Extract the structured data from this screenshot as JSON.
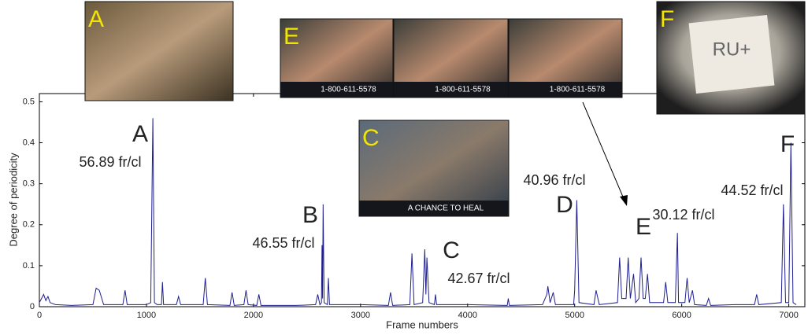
{
  "chart_data": {
    "type": "line",
    "ylabel": "Degree of periodicity",
    "xlabel": "Frame numbers",
    "color": "#1f1f8f",
    "xlim": [
      0,
      7150
    ],
    "ylim": [
      0,
      0.52
    ],
    "xticks": [
      0,
      1000,
      2000,
      3000,
      4000,
      5000,
      6000,
      7000
    ],
    "yticks": [
      0,
      0.1,
      0.2,
      0.3,
      0.4,
      0.5
    ],
    "x": [
      0,
      20,
      40,
      60,
      80,
      100,
      150,
      300,
      500,
      530,
      560,
      600,
      780,
      800,
      820,
      1000,
      1040,
      1060,
      1075,
      1100,
      1140,
      1150,
      1160,
      1280,
      1300,
      1320,
      1530,
      1550,
      1570,
      1780,
      1800,
      1820,
      1910,
      1930,
      1950,
      2030,
      2050,
      2070,
      2400,
      2580,
      2600,
      2620,
      2635,
      2640,
      2645,
      2650,
      2660,
      2690,
      2700,
      2710,
      3000,
      3260,
      3280,
      3300,
      3460,
      3480,
      3500,
      3580,
      3600,
      3610,
      3620,
      3640,
      3690,
      3700,
      3710,
      4000,
      4370,
      4380,
      4390,
      4700,
      4740,
      4750,
      4770,
      4800,
      4820,
      4990,
      5000,
      5020,
      5040,
      5180,
      5200,
      5230,
      5400,
      5420,
      5440,
      5480,
      5500,
      5520,
      5550,
      5570,
      5600,
      5620,
      5640,
      5660,
      5680,
      5700,
      5830,
      5850,
      5870,
      5940,
      5960,
      5970,
      6030,
      6050,
      6070,
      6100,
      6120,
      6230,
      6250,
      6270,
      6500,
      6680,
      6700,
      6720,
      6930,
      6950,
      6970,
      7000,
      7020,
      7040,
      7070
    ],
    "values": [
      0.01,
      0.02,
      0.03,
      0.015,
      0.025,
      0.01,
      0.005,
      0.003,
      0.005,
      0.045,
      0.04,
      0.005,
      0.005,
      0.04,
      0.005,
      0.005,
      0.01,
      0.46,
      0.01,
      0.005,
      0.005,
      0.06,
      0.005,
      0.005,
      0.025,
      0.005,
      0.005,
      0.07,
      0.005,
      0.003,
      0.035,
      0.003,
      0.005,
      0.04,
      0.005,
      0.003,
      0.03,
      0.003,
      0.003,
      0.005,
      0.03,
      0.005,
      0.01,
      0.15,
      0.02,
      0.25,
      0.01,
      0.005,
      0.07,
      0.005,
      0.005,
      0.003,
      0.035,
      0.003,
      0.005,
      0.13,
      0.005,
      0.01,
      0.14,
      0.03,
      0.12,
      0.01,
      0.005,
      0.03,
      0.005,
      0.005,
      0.003,
      0.02,
      0.003,
      0.005,
      0.03,
      0.05,
      0.01,
      0.035,
      0.005,
      0.005,
      0.04,
      0.26,
      0.01,
      0.005,
      0.04,
      0.005,
      0.01,
      0.12,
      0.02,
      0.02,
      0.12,
      0.02,
      0.08,
      0.01,
      0.02,
      0.12,
      0.02,
      0.02,
      0.08,
      0.01,
      0.01,
      0.06,
      0.01,
      0.01,
      0.18,
      0.01,
      0.01,
      0.07,
      0.01,
      0.04,
      0.005,
      0.003,
      0.02,
      0.003,
      0.005,
      0.005,
      0.03,
      0.005,
      0.01,
      0.25,
      0.01,
      0.01,
      0.4,
      0.01,
      0.005
    ],
    "annotations": [
      {
        "letter": "A",
        "rate": "56.89 fr/cl"
      },
      {
        "letter": "B",
        "rate": "46.55 fr/cl"
      },
      {
        "letter": "C",
        "rate": "42.67 fr/cl"
      },
      {
        "letter": "D",
        "rate": "40.96 fr/cl"
      },
      {
        "letter": "E",
        "rate": "30.12 fr/cl"
      },
      {
        "letter": "F",
        "rate": "44.52 fr/cl"
      }
    ],
    "thumbnails": [
      {
        "label": "A"
      },
      {
        "label": "E",
        "captions": [
          "1-800-611-5578",
          "1-800-611-5578",
          "1-800-611-5578"
        ]
      },
      {
        "label": "C",
        "captions": [
          "A CHANCE TO HEAL"
        ]
      },
      {
        "label": "F",
        "captions": [
          "RU+"
        ]
      }
    ]
  }
}
